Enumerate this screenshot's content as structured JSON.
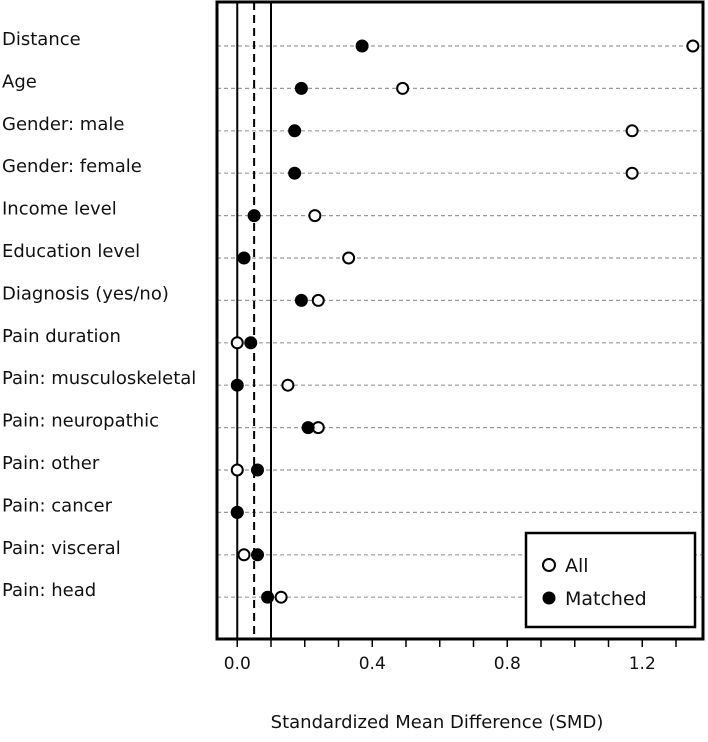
{
  "chart_data": {
    "type": "scatter",
    "title": "",
    "xlabel": "Standardized Mean Difference (SMD)",
    "ylabel": "",
    "xlim": [
      -0.06,
      1.38
    ],
    "xticks": [
      "0.0",
      "0.4",
      "0.8",
      "1.2"
    ],
    "xtick_values": [
      0.0,
      0.4,
      0.8,
      1.2
    ],
    "reference_lines": [
      {
        "value": 0.0,
        "style": "solid"
      },
      {
        "value": 0.05,
        "style": "dashed"
      },
      {
        "value": 0.1,
        "style": "solid"
      }
    ],
    "categories": [
      "Distance",
      "Age",
      "Gender: male",
      "Gender: female",
      "Income level",
      "Education level",
      "Diagnosis (yes/no)",
      "Pain duration",
      "Pain: musculoskeletal",
      "Pain: neuropathic",
      "Pain: other",
      "Pain: cancer",
      "Pain: visceral",
      "Pain: head"
    ],
    "series": [
      {
        "name": "All",
        "marker": "open-circle",
        "values": [
          1.35,
          0.49,
          1.17,
          1.17,
          0.23,
          0.33,
          0.24,
          0.0,
          0.15,
          0.24,
          0.0,
          0.0,
          0.02,
          0.13
        ]
      },
      {
        "name": "Matched",
        "marker": "filled-circle",
        "values": [
          0.37,
          0.19,
          0.17,
          0.17,
          0.05,
          0.02,
          0.19,
          0.04,
          0.0,
          0.21,
          0.06,
          0.0,
          0.06,
          0.09
        ]
      }
    ],
    "legend": {
      "position": "bottom-right",
      "entries": [
        "All",
        "Matched"
      ]
    },
    "grid": "horizontal dotted"
  }
}
